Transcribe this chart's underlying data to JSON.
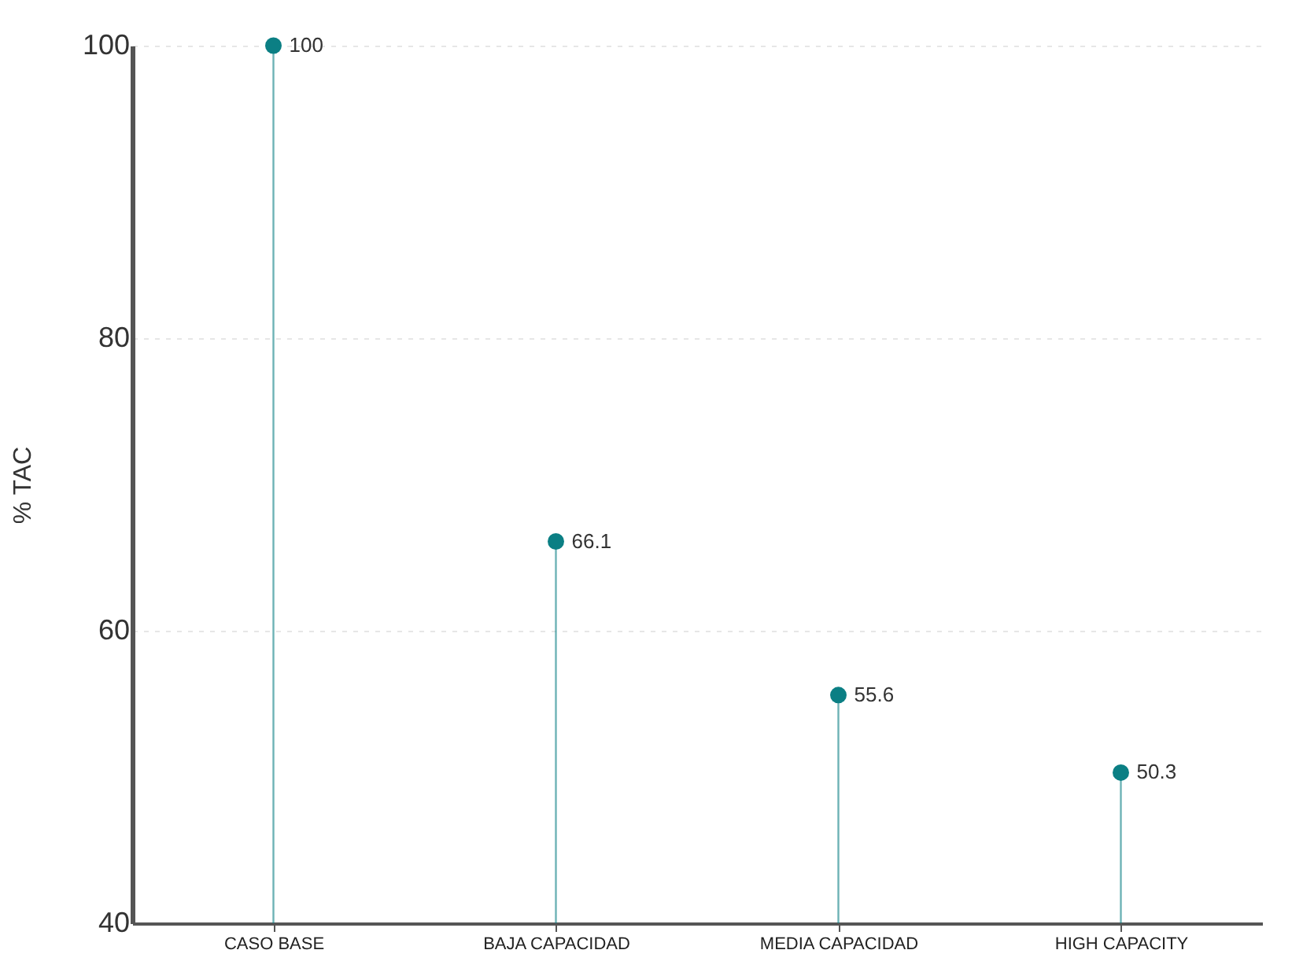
{
  "chart_data": {
    "type": "lollipop",
    "ylabel": "% TAC",
    "categories": [
      "CASO BASE",
      "BAJA CAPACIDAD",
      "MEDIA CAPACIDAD",
      "HIGH CAPACITY"
    ],
    "values": [
      100,
      66.1,
      55.6,
      50.3
    ],
    "color": "#0b7f84",
    "ylim": [
      40,
      100
    ],
    "yticks": [
      40,
      60,
      80,
      100
    ],
    "grid": "y",
    "data_labels": true,
    "marker": "circle"
  }
}
